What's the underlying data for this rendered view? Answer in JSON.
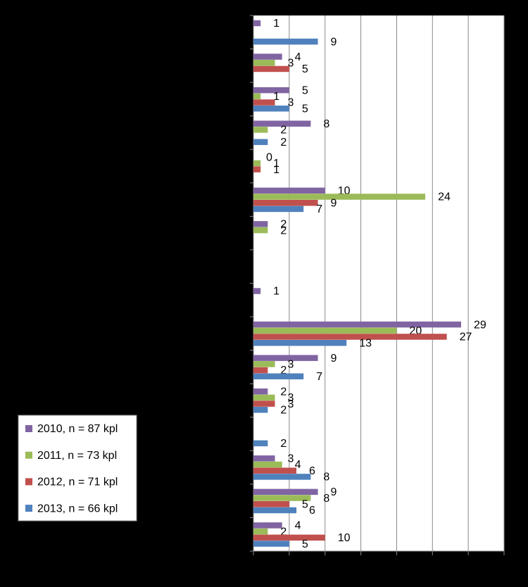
{
  "chart_data": {
    "type": "bar",
    "orientation": "horizontal",
    "categories": [
      null,
      null,
      null,
      null,
      null,
      null,
      null,
      null,
      null,
      null,
      null,
      null,
      null,
      null,
      null,
      null
    ],
    "series": [
      {
        "name": "2010, n = 87 kpl",
        "color": "#8064a2",
        "values": [
          1,
          4,
          5,
          8,
          0,
          10,
          2,
          null,
          1,
          29,
          9,
          2,
          null,
          3,
          9,
          4
        ]
      },
      {
        "name": "2011, n = 73 kpl",
        "color": "#9bbb59",
        "values": [
          null,
          3,
          1,
          2,
          1,
          24,
          2,
          null,
          null,
          20,
          3,
          3,
          null,
          4,
          8,
          2
        ]
      },
      {
        "name": "2012, n = 71 kpl",
        "color": "#c0504d",
        "values": [
          null,
          5,
          3,
          null,
          1,
          9,
          null,
          null,
          null,
          27,
          2,
          3,
          null,
          6,
          5,
          10
        ]
      },
      {
        "name": "2013, n = 66 kpl",
        "color": "#4f81bd",
        "values": [
          9,
          null,
          5,
          2,
          null,
          7,
          null,
          null,
          null,
          13,
          7,
          2,
          2,
          8,
          6,
          5
        ]
      }
    ],
    "xlim": [
      0,
      35
    ],
    "xticks": [
      0,
      5,
      10,
      15,
      20,
      25,
      30,
      35
    ],
    "grid": true
  }
}
